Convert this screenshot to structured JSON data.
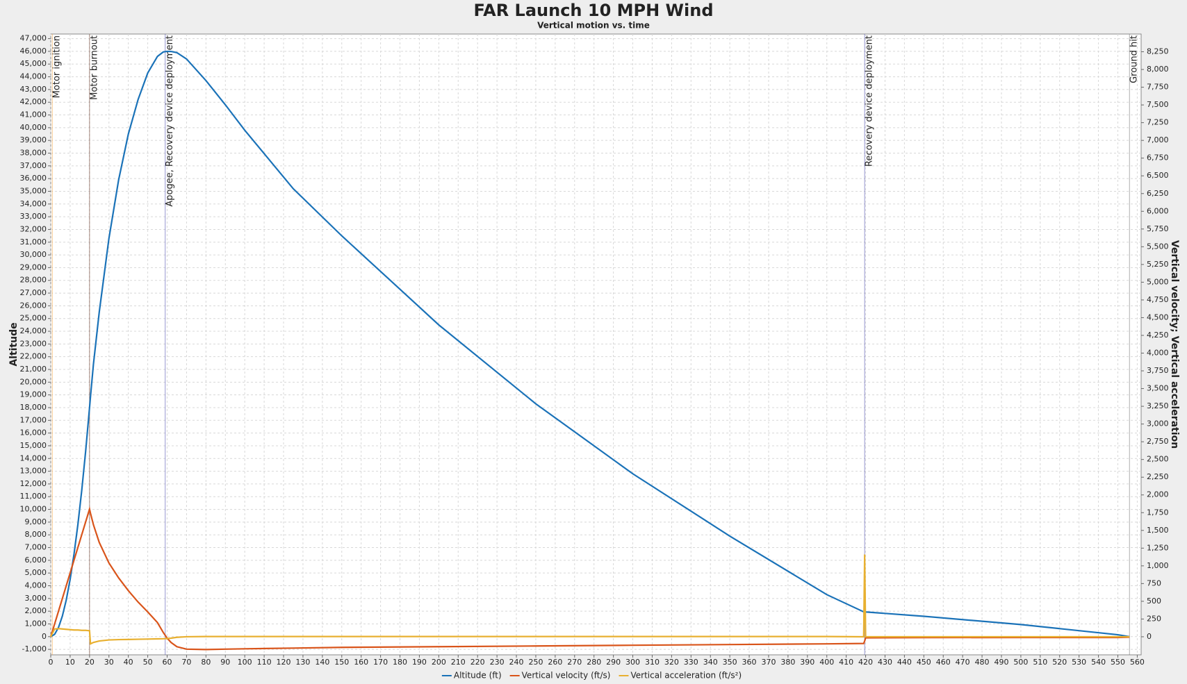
{
  "chart_data": {
    "type": "line",
    "title": "FAR Launch 10 MPH Wind",
    "subtitle": "Vertical motion vs. time",
    "y_label": "Altitude",
    "y2_label": "Vertical velocity; Vertical acceleration",
    "grid": true,
    "legend": "bottom",
    "x": [
      0,
      2,
      4,
      6,
      8,
      10,
      12,
      14,
      16,
      18,
      20,
      20.5,
      22,
      25,
      30,
      35,
      40,
      45,
      50,
      55,
      58,
      60,
      62,
      65,
      70,
      80,
      90,
      100,
      125,
      150,
      175,
      200,
      250,
      300,
      350,
      400,
      419,
      419.5,
      420,
      450,
      500,
      550,
      556
    ],
    "series": [
      {
        "name": "Altitude (ft)",
        "color": "#1a72b8",
        "axis": "y",
        "values": [
          0,
          180,
          720,
          1620,
          2880,
          4500,
          6480,
          8820,
          11520,
          14580,
          18000,
          18880,
          21400,
          25500,
          31300,
          35900,
          39500,
          42200,
          44300,
          45600,
          45950,
          46000,
          45990,
          45900,
          45400,
          43700,
          41800,
          39800,
          35200,
          31500,
          28000,
          24500,
          18300,
          12800,
          7900,
          3300,
          1950,
          1950,
          1940,
          1600,
          950,
          150,
          0
        ]
      },
      {
        "name": "Vertical velocity (ft/s)",
        "color": "#d9541a",
        "axis": "y2",
        "values": [
          0,
          180,
          360,
          540,
          720,
          900,
          1080,
          1260,
          1440,
          1620,
          1800,
          1740,
          1580,
          1330,
          1040,
          830,
          650,
          490,
          350,
          200,
          60,
          -20,
          -80,
          -140,
          -175,
          -180,
          -175,
          -170,
          -160,
          -150,
          -145,
          -140,
          -130,
          -120,
          -110,
          -100,
          -95,
          -60,
          -15,
          -12,
          -10,
          -10,
          -5
        ]
      },
      {
        "name": "Vertical acceleration (ft/s²)",
        "color": "#e8b030",
        "axis": "y2",
        "values": [
          0,
          110,
          115,
          110,
          105,
          100,
          95,
          95,
          90,
          90,
          85,
          -100,
          -80,
          -60,
          -45,
          -40,
          -38,
          -35,
          -33,
          -30,
          -28,
          -25,
          -20,
          -8,
          0,
          3,
          3,
          3,
          3,
          3,
          3,
          3,
          3,
          3,
          3,
          3,
          0,
          1160,
          0,
          0,
          0,
          0,
          0
        ]
      }
    ],
    "events": [
      {
        "name": "Motor ignition",
        "time": 0.8,
        "color": "#f0a040"
      },
      {
        "name": "Motor burnout",
        "time": 20,
        "color": "#6b3a2a"
      },
      {
        "name": "Apogee, Recovery device deployment",
        "time": 59,
        "color": "#5050b0"
      },
      {
        "name": "Recovery device deployment",
        "time": 419.5,
        "color": "#5050b0"
      },
      {
        "name": "Ground hit",
        "time": 556,
        "color": "#777777"
      }
    ],
    "xlim": [
      0,
      562
    ],
    "xticks": [
      0,
      10,
      20,
      30,
      40,
      50,
      60,
      70,
      80,
      90,
      100,
      110,
      120,
      130,
      140,
      150,
      160,
      170,
      180,
      190,
      200,
      210,
      220,
      230,
      240,
      250,
      260,
      270,
      280,
      290,
      300,
      310,
      320,
      330,
      340,
      350,
      360,
      370,
      380,
      390,
      400,
      410,
      420,
      430,
      440,
      450,
      460,
      470,
      480,
      490,
      500,
      510,
      520,
      530,
      540,
      550,
      560
    ],
    "ylim": [
      -1430,
      47360
    ],
    "yticks": [
      {
        "value": -1000,
        "label": "-1,000"
      },
      0,
      {
        "value": 1000,
        "label": "1,000"
      },
      {
        "value": 2000,
        "label": "2,000"
      },
      {
        "value": 3000,
        "label": "3,000"
      },
      {
        "value": 4000,
        "label": "4,000"
      },
      {
        "value": 5000,
        "label": "5,000"
      },
      {
        "value": 6000,
        "label": "6,000"
      },
      {
        "value": 7000,
        "label": "7,000"
      },
      {
        "value": 8000,
        "label": "8,000"
      },
      {
        "value": 9000,
        "label": "9,000"
      },
      {
        "value": 10000,
        "label": "10,000"
      },
      {
        "value": 11000,
        "label": "11,000"
      },
      {
        "value": 12000,
        "label": "12,000"
      },
      {
        "value": 13000,
        "label": "13,000"
      },
      {
        "value": 14000,
        "label": "14,000"
      },
      {
        "value": 15000,
        "label": "15,000"
      },
      {
        "value": 16000,
        "label": "16,000"
      },
      {
        "value": 17000,
        "label": "17,000"
      },
      {
        "value": 18000,
        "label": "18,000"
      },
      {
        "value": 19000,
        "label": "19,000"
      },
      {
        "value": 20000,
        "label": "20,000"
      },
      {
        "value": 21000,
        "label": "21,000"
      },
      {
        "value": 22000,
        "label": "22,000"
      },
      {
        "value": 23000,
        "label": "23,000"
      },
      {
        "value": 24000,
        "label": "24,000"
      },
      {
        "value": 25000,
        "label": "25,000"
      },
      {
        "value": 26000,
        "label": "26,000"
      },
      {
        "value": 27000,
        "label": "27,000"
      },
      {
        "value": 28000,
        "label": "28,000"
      },
      {
        "value": 29000,
        "label": "29,000"
      },
      {
        "value": 30000,
        "label": "30,000"
      },
      {
        "value": 31000,
        "label": "31,000"
      },
      {
        "value": 32000,
        "label": "32,000"
      },
      {
        "value": 33000,
        "label": "33,000"
      },
      {
        "value": 34000,
        "label": "34,000"
      },
      {
        "value": 35000,
        "label": "35,000"
      },
      {
        "value": 36000,
        "label": "36,000"
      },
      {
        "value": 37000,
        "label": "37,000"
      },
      {
        "value": 38000,
        "label": "38,000"
      },
      {
        "value": 39000,
        "label": "39,000"
      },
      {
        "value": 40000,
        "label": "40,000"
      },
      {
        "value": 41000,
        "label": "41,000"
      },
      {
        "value": 42000,
        "label": "42,000"
      },
      {
        "value": 43000,
        "label": "43,000"
      },
      {
        "value": 44000,
        "label": "44,000"
      },
      {
        "value": 45000,
        "label": "45,000"
      },
      {
        "value": 46000,
        "label": "46,000"
      },
      {
        "value": 47000,
        "label": "47,000"
      }
    ],
    "y2lim": [
      -255,
      8500
    ],
    "y2ticks": [
      0,
      250,
      500,
      750,
      {
        "value": 1000,
        "label": "1,000"
      },
      {
        "value": 1250,
        "label": "1,250"
      },
      {
        "value": 1500,
        "label": "1,500"
      },
      {
        "value": 1750,
        "label": "1,750"
      },
      {
        "value": 2000,
        "label": "2,000"
      },
      {
        "value": 2250,
        "label": "2,250"
      },
      {
        "value": 2500,
        "label": "2,500"
      },
      {
        "value": 2750,
        "label": "2,750"
      },
      {
        "value": 3000,
        "label": "3,000"
      },
      {
        "value": 3250,
        "label": "3,250"
      },
      {
        "value": 3500,
        "label": "3,500"
      },
      {
        "value": 3750,
        "label": "3,750"
      },
      {
        "value": 4000,
        "label": "4,000"
      },
      {
        "value": 4250,
        "label": "4,250"
      },
      {
        "value": 4500,
        "label": "4,500"
      },
      {
        "value": 4750,
        "label": "4,750"
      },
      {
        "value": 5000,
        "label": "5,000"
      },
      {
        "value": 5250,
        "label": "5,250"
      },
      {
        "value": 5500,
        "label": "5,500"
      },
      {
        "value": 5750,
        "label": "5,750"
      },
      {
        "value": 6000,
        "label": "6,000"
      },
      {
        "value": 6250,
        "label": "6,250"
      },
      {
        "value": 6500,
        "label": "6,500"
      },
      {
        "value": 6750,
        "label": "6,750"
      },
      {
        "value": 7000,
        "label": "7,000"
      },
      {
        "value": 7250,
        "label": "7,250"
      },
      {
        "value": 7500,
        "label": "7,500"
      },
      {
        "value": 7750,
        "label": "7,750"
      },
      {
        "value": 8000,
        "label": "8,000"
      },
      {
        "value": 8250,
        "label": "8,250"
      }
    ]
  }
}
